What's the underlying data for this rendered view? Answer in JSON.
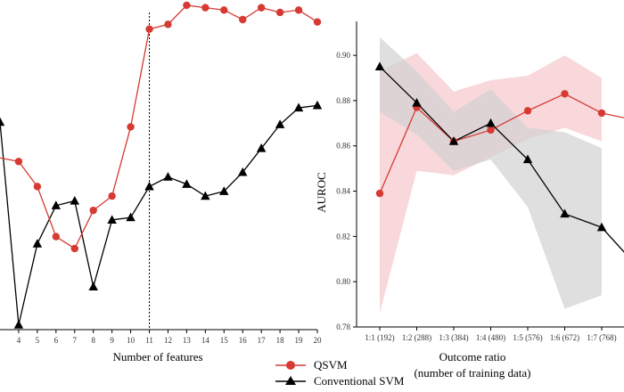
{
  "legend": {
    "items": [
      {
        "label": "QSVM",
        "color": "#d63a32",
        "marker": "circle"
      },
      {
        "label": "Conventional SVM",
        "color": "#000000",
        "marker": "triangle"
      }
    ]
  },
  "chart_data": [
    {
      "type": "line",
      "xlabel": "Number of features",
      "ylabel": "",
      "xlim": [
        3,
        20
      ],
      "ylim": [
        0.7,
        0.83
      ],
      "x": [
        4,
        5,
        6,
        7,
        8,
        9,
        10,
        11,
        12,
        13,
        14,
        15,
        16,
        17,
        18,
        19,
        20
      ],
      "visible_x_ticks": [
        "4",
        "5",
        "6",
        "7",
        "8",
        "9",
        "10",
        "11",
        "12",
        "13",
        "14",
        "15",
        "16",
        "17",
        "18",
        "19",
        "20"
      ],
      "vline_x": 11,
      "series": [
        {
          "name": "QSVM",
          "color": "#d63a32",
          "marker": "circle",
          "values": [
            0.7705,
            0.76,
            0.739,
            0.734,
            0.75,
            0.756,
            0.785,
            0.826,
            0.828,
            0.836,
            0.835,
            0.834,
            0.83,
            0.835,
            0.833,
            0.834,
            0.829
          ]
        },
        {
          "name": "Conventional SVM",
          "color": "#000000",
          "marker": "triangle",
          "values": [
            0.702,
            0.736,
            0.752,
            0.754,
            0.718,
            0.746,
            0.747,
            0.76,
            0.764,
            0.761,
            0.756,
            0.758,
            0.766,
            0.776,
            0.786,
            0.793,
            0.794
          ]
        }
      ]
    },
    {
      "type": "line",
      "xlabel": "Outcome ratio\n(number of training data)",
      "ylabel": "AUROC",
      "ylim": [
        0.78,
        0.915
      ],
      "yticks": [
        "0.78",
        "0.80",
        "0.82",
        "0.84",
        "0.86",
        "0.88",
        "0.90"
      ],
      "categories": [
        "1:1 (192)",
        "1:2 (288)",
        "1:3 (384)",
        "1:4 (480)",
        "1:5 (576)",
        "1:6 (672)",
        "1:7 (768)"
      ],
      "series": [
        {
          "name": "QSVM",
          "color": "#d63a32",
          "band_color": "#f2b8bb",
          "values": [
            0.839,
            0.877,
            0.862,
            0.867,
            0.8755,
            0.883,
            0.8745
          ],
          "lower": [
            0.786,
            0.849,
            0.847,
            0.855,
            0.863,
            0.868,
            0.862
          ],
          "upper": [
            0.893,
            0.901,
            0.884,
            0.889,
            0.891,
            0.9,
            0.89
          ]
        },
        {
          "name": "Conventional SVM",
          "color": "#000000",
          "band_color": "#d2d2d2",
          "values": [
            0.895,
            0.879,
            0.862,
            0.87,
            0.854,
            0.83,
            0.824
          ],
          "lower": [
            0.875,
            0.865,
            0.849,
            0.854,
            0.833,
            0.788,
            0.794
          ],
          "upper": [
            0.908,
            0.893,
            0.875,
            0.885,
            0.868,
            0.866,
            0.859
          ]
        }
      ]
    }
  ]
}
